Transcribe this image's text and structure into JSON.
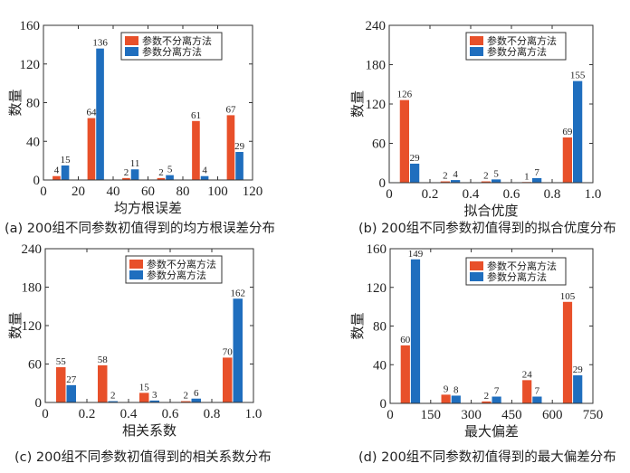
{
  "colors": {
    "series1": "#E8502A",
    "series2": "#1F6EBE"
  },
  "legend_entries": [
    "参数不分离方法",
    "参数分离方法"
  ],
  "chart_data": [
    {
      "type": "bar",
      "caption": "(a) 200组不同参数初值得到的均方根误差分布",
      "xlabel": "均方根误差",
      "ylabel": "数量",
      "xlim": [
        0,
        120
      ],
      "xticks": [
        0,
        20,
        40,
        60,
        80,
        100,
        120
      ],
      "xtick_labels": [
        "0",
        "20",
        "40",
        "60",
        "80",
        "100",
        "120"
      ],
      "ylim": [
        0,
        160
      ],
      "yticks": [
        0,
        40,
        80,
        120,
        160
      ],
      "x": [
        10,
        30,
        50,
        70,
        90,
        110
      ],
      "bar_width": 5,
      "legend": "top-right",
      "series": [
        {
          "name": "参数不分离方法",
          "values": [
            4,
            64,
            2,
            2,
            61,
            67
          ]
        },
        {
          "name": "参数分离方法",
          "values": [
            15,
            136,
            11,
            5,
            4,
            29
          ]
        }
      ]
    },
    {
      "type": "bar",
      "caption": "(b) 200组不同参数初值得到的拟合优度分布",
      "xlabel": "拟合优度",
      "ylabel": "数量",
      "xlim": [
        0,
        1
      ],
      "xticks": [
        0,
        0.2,
        0.4,
        0.6,
        0.8,
        1.0
      ],
      "xtick_labels": [
        "0",
        "0.2",
        "0.4",
        "0.6",
        "0.8",
        "1.0"
      ],
      "ylim": [
        0,
        240
      ],
      "yticks": [
        0,
        60,
        120,
        180,
        240
      ],
      "x": [
        0.1,
        0.3,
        0.5,
        0.7,
        0.9
      ],
      "bar_width": 0.05,
      "legend": "top-right",
      "series": [
        {
          "name": "参数不分离方法",
          "values": [
            126,
            2,
            2,
            1,
            69
          ]
        },
        {
          "name": "参数分离方法",
          "values": [
            29,
            4,
            5,
            7,
            155
          ]
        }
      ]
    },
    {
      "type": "bar",
      "caption": "(c) 200组不同参数初值得到的相关系数分布",
      "xlabel": "相关系数",
      "ylabel": "数量",
      "xlim": [
        0,
        1
      ],
      "xticks": [
        0,
        0.2,
        0.4,
        0.6,
        0.8,
        1.0
      ],
      "xtick_labels": [
        "0",
        "0.2",
        "0.4",
        "0.6",
        "0.8",
        "1.0"
      ],
      "ylim": [
        0,
        240
      ],
      "yticks": [
        0,
        60,
        120,
        180,
        240
      ],
      "x": [
        0.1,
        0.3,
        0.5,
        0.7,
        0.9
      ],
      "bar_width": 0.05,
      "legend": "top-right",
      "series": [
        {
          "name": "参数不分离方法",
          "values": [
            55,
            58,
            15,
            2,
            70
          ]
        },
        {
          "name": "参数分离方法",
          "values": [
            27,
            2,
            3,
            6,
            162
          ]
        }
      ]
    },
    {
      "type": "bar",
      "caption": "(d) 200组不同参数初值得到的最大偏差分布",
      "xlabel": "最大偏差",
      "ylabel": "数量",
      "xlim": [
        0,
        750
      ],
      "xticks": [
        0,
        150,
        300,
        450,
        600,
        750
      ],
      "xtick_labels": [
        "0",
        "150",
        "300",
        "450",
        "600",
        "750"
      ],
      "ylim": [
        0,
        160
      ],
      "yticks": [
        0,
        40,
        80,
        120,
        160
      ],
      "x": [
        75,
        225,
        375,
        525,
        675
      ],
      "bar_width": 37.5,
      "legend": "top-right",
      "series": [
        {
          "name": "参数不分离方法",
          "values": [
            60,
            9,
            2,
            24,
            105
          ]
        },
        {
          "name": "参数分离方法",
          "values": [
            149,
            8,
            7,
            7,
            29
          ]
        }
      ]
    }
  ]
}
